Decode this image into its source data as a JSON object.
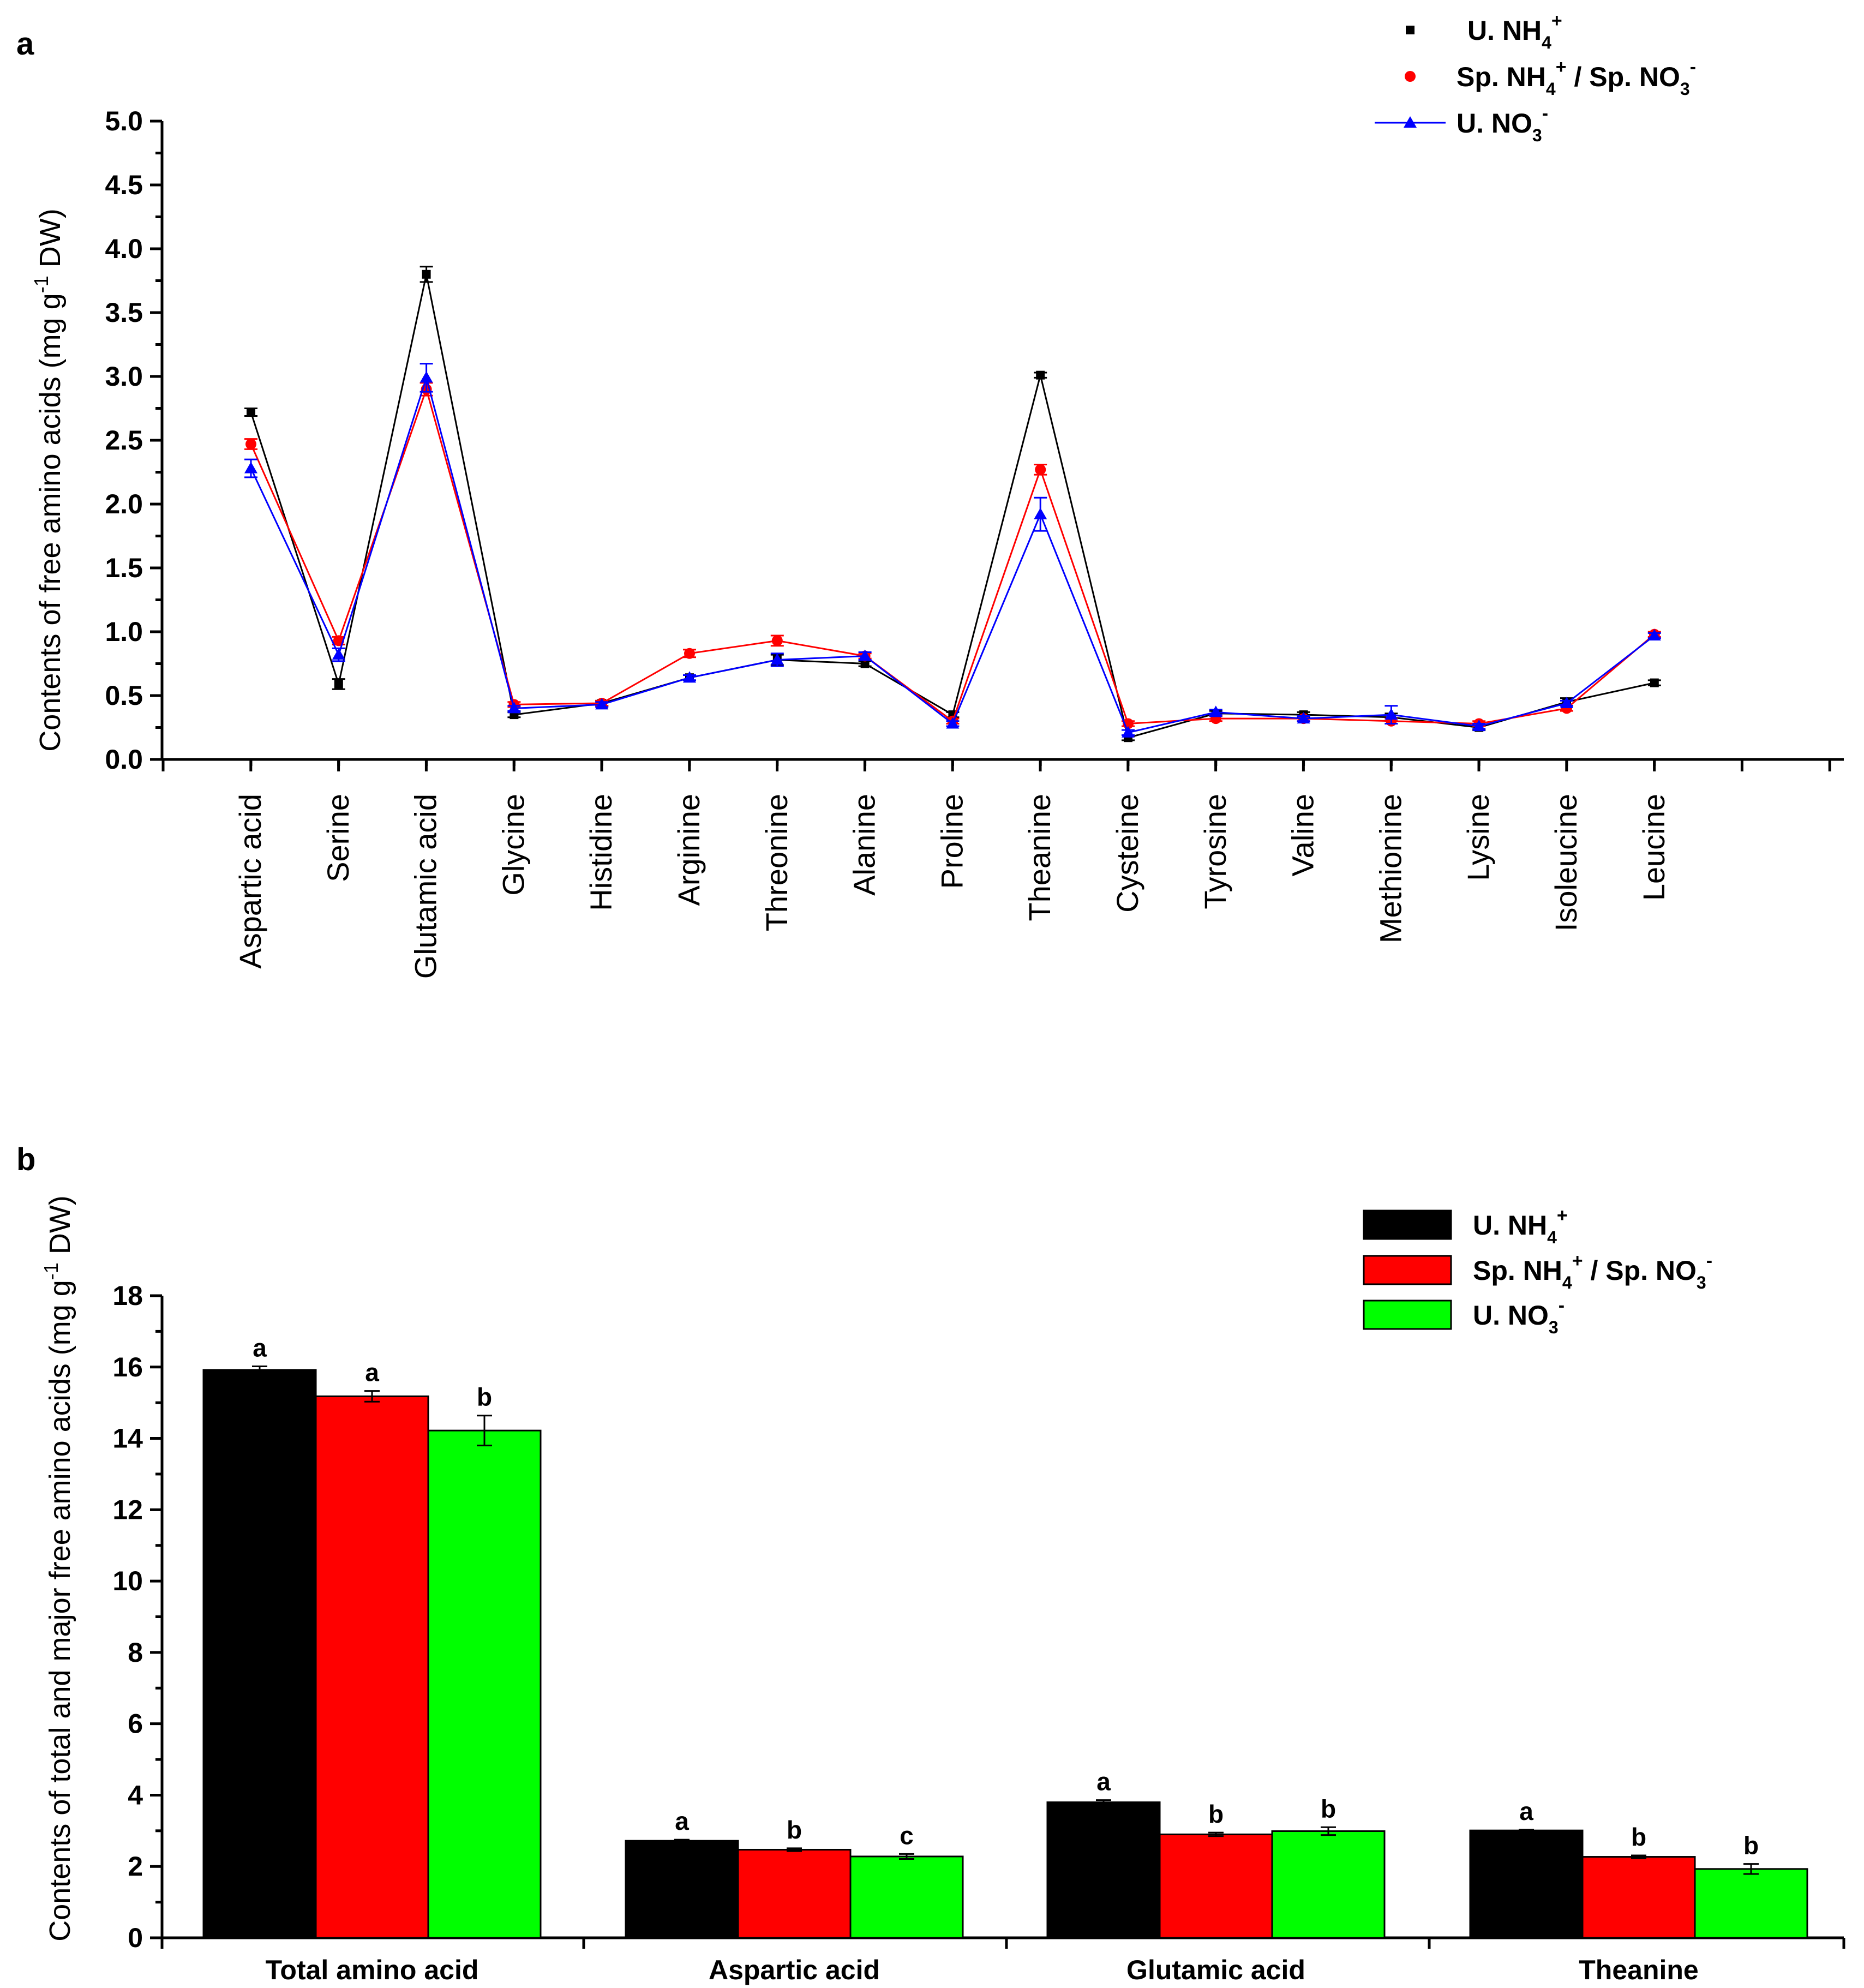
{
  "chart_data": [
    {
      "panel": "a",
      "type": "line",
      "ylabel": "Contents of free amino acids (mg g-1 DW)",
      "ylabel_parts": [
        "Contents of free amino acids (mg g",
        "-1",
        " DW)"
      ],
      "ylim": [
        0,
        5.0
      ],
      "yticks": [
        "0.0",
        "0.5",
        "1.0",
        "1.5",
        "2.0",
        "2.5",
        "3.0",
        "3.5",
        "4.0",
        "4.5",
        "5.0"
      ],
      "categories": [
        "Aspartic acid",
        "Serine",
        "Glutamic acid",
        "Glycine",
        "Histidine",
        "Arginine",
        "Threonine",
        "Alanine",
        "Proline",
        "Theanine",
        "Cysteine",
        "Tyrosine",
        "Valine",
        "Methionine",
        "Lysine",
        "Isoleucine",
        "Leucine"
      ],
      "series": [
        {
          "name": "U. NH4+",
          "color": "#000000",
          "marker": "square",
          "values": [
            2.72,
            0.59,
            3.8,
            0.35,
            0.44,
            0.64,
            0.78,
            0.75,
            0.35,
            3.01,
            0.17,
            0.36,
            0.35,
            0.33,
            0.25,
            0.45,
            0.6
          ],
          "errors": [
            0.03,
            0.04,
            0.06,
            0.02,
            0.02,
            0.02,
            0.04,
            0.02,
            0.02,
            0.02,
            0.02,
            0.02,
            0.02,
            0.03,
            0.02,
            0.03,
            0.02
          ]
        },
        {
          "name": "Sp. NH4+ / Sp. NO3-",
          "color": "#ff0000",
          "marker": "circle",
          "values": [
            2.47,
            0.93,
            2.9,
            0.43,
            0.44,
            0.83,
            0.93,
            0.81,
            0.3,
            2.27,
            0.28,
            0.32,
            0.32,
            0.3,
            0.28,
            0.4,
            0.98
          ],
          "errors": [
            0.04,
            0.03,
            0.05,
            0.02,
            0.02,
            0.03,
            0.04,
            0.02,
            0.02,
            0.04,
            0.02,
            0.02,
            0.02,
            0.02,
            0.02,
            0.02,
            0.02
          ]
        },
        {
          "name": "U. NO3-",
          "color": "#0000ff",
          "marker": "triangle",
          "values": [
            2.28,
            0.82,
            2.99,
            0.4,
            0.43,
            0.64,
            0.78,
            0.81,
            0.28,
            1.92,
            0.21,
            0.37,
            0.32,
            0.35,
            0.26,
            0.44,
            0.97
          ],
          "errors": [
            0.07,
            0.05,
            0.11,
            0.02,
            0.02,
            0.02,
            0.05,
            0.03,
            0.02,
            0.13,
            0.02,
            0.02,
            0.02,
            0.07,
            0.02,
            0.02,
            0.02
          ]
        }
      ],
      "legend": [
        {
          "label": "U. NH",
          "sub": "4",
          "sup": "+",
          "marker": "square",
          "color": "#000000"
        },
        {
          "label": "Sp. NH",
          "sub": "4",
          "sup": "+",
          "mid": " / Sp. NO",
          "sub2": "3",
          "sup2": "-",
          "marker": "circle",
          "color": "#ff0000"
        },
        {
          "label": "U. NO",
          "sub": "3",
          "sup": "-",
          "marker": "triangle",
          "color": "#0000ff"
        }
      ]
    },
    {
      "panel": "b",
      "type": "bar",
      "ylabel": "Contents of total and major free amino acids (mg g-1 DW)",
      "ylabel_parts": [
        "Contents of total and major free amino acids (mg g",
        "-1",
        " DW)"
      ],
      "ylim": [
        0,
        18
      ],
      "yticks": [
        "0",
        "2",
        "4",
        "6",
        "8",
        "10",
        "12",
        "14",
        "16",
        "18"
      ],
      "categories": [
        "Total amino acid",
        "Aspartic acid",
        "Glutamic acid",
        "Theanine"
      ],
      "series": [
        {
          "name": "U. NH4+",
          "color": "#000000",
          "values": [
            15.92,
            2.72,
            3.8,
            3.01
          ],
          "errors": [
            0.1,
            0.03,
            0.06,
            0.02
          ],
          "labels": [
            "a",
            "a",
            "a",
            "a"
          ]
        },
        {
          "name": "Sp. NH4+ / Sp. NO3-",
          "color": "#ff0000",
          "values": [
            15.18,
            2.47,
            2.9,
            2.27
          ],
          "errors": [
            0.15,
            0.04,
            0.05,
            0.04
          ],
          "labels": [
            "a",
            "b",
            "b",
            "b"
          ]
        },
        {
          "name": "U. NO3-",
          "color": "#00ff00",
          "values": [
            14.22,
            2.28,
            2.99,
            1.93
          ],
          "errors": [
            0.42,
            0.07,
            0.11,
            0.14
          ],
          "labels": [
            "b",
            "c",
            "b",
            "b"
          ]
        }
      ],
      "legend": [
        {
          "label": "U. NH",
          "sub": "4",
          "sup": "+",
          "color": "#000000"
        },
        {
          "label": "Sp. NH",
          "sub": "4",
          "sup": "+",
          "mid": " / Sp. NO",
          "sub2": "3",
          "sup2": "-",
          "color": "#ff0000"
        },
        {
          "label": "U. NO",
          "sub": "3",
          "sup": "-",
          "color": "#00ff00"
        }
      ]
    }
  ]
}
